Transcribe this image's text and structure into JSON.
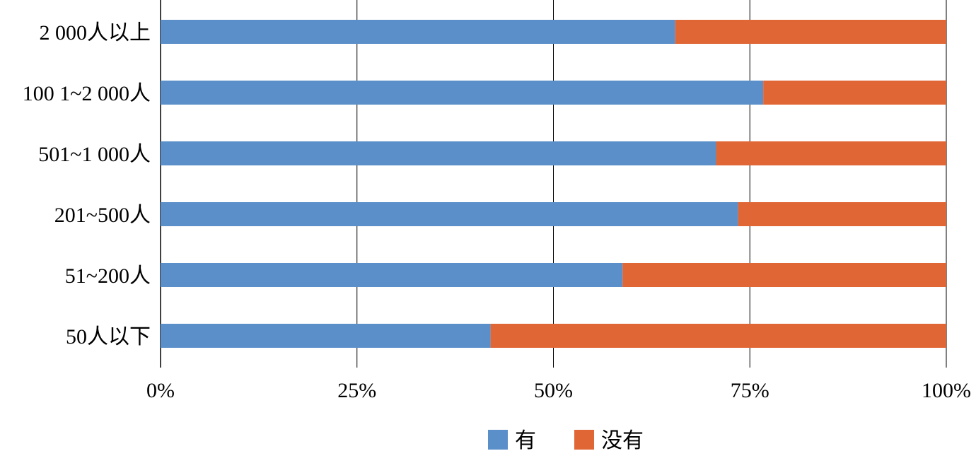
{
  "chart_data": {
    "type": "bar",
    "orientation": "horizontal",
    "stacked": "percent",
    "categories": [
      "2 000人以上",
      "100 1~2 000人",
      "501~1 000人",
      "201~500人",
      "51~200人",
      "50人以下"
    ],
    "series": [
      {
        "name": "有",
        "color": "#5B8FC9",
        "values": [
          65.5,
          76.7,
          70.7,
          73.5,
          58.8,
          42.0
        ]
      },
      {
        "name": "没有",
        "color": "#E06636",
        "values": [
          34.5,
          23.3,
          29.3,
          26.5,
          41.2,
          58.0
        ]
      }
    ],
    "x_ticks": [
      "0%",
      "25%",
      "50%",
      "75%",
      "100%"
    ],
    "xlim": [
      0,
      100
    ],
    "grid": "vertical",
    "legend_position": "bottom"
  }
}
